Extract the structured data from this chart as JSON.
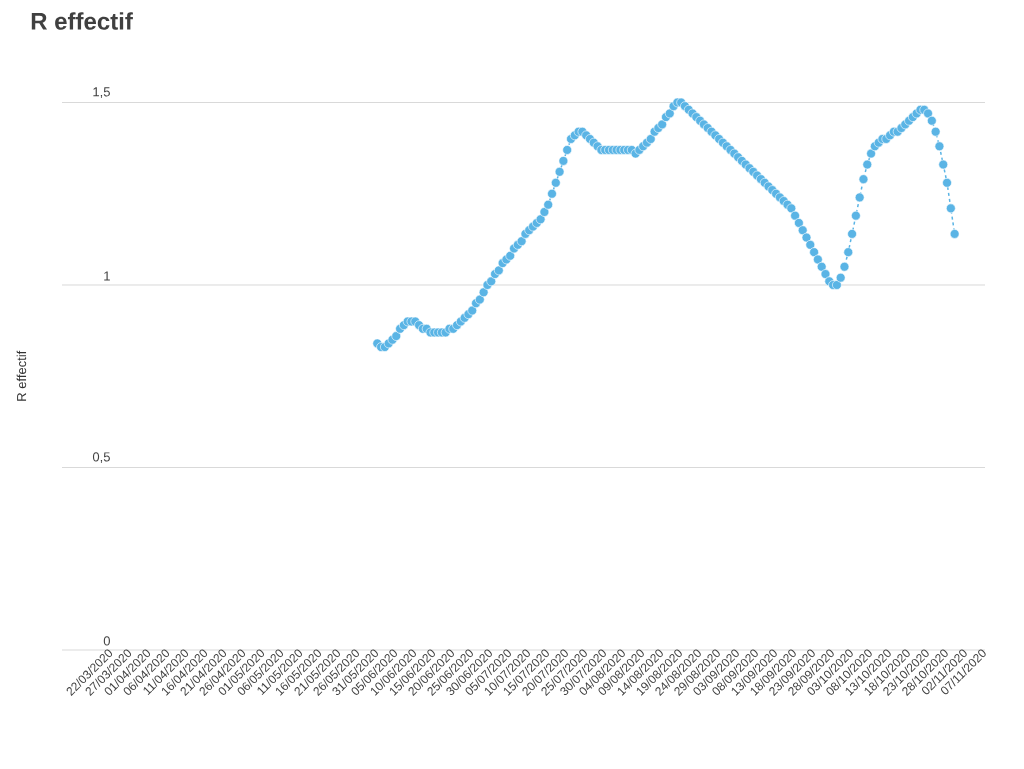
{
  "chart_data": {
    "type": "line",
    "title": "R effectif",
    "ylabel": "R effectif",
    "x": [
      "2020-05-31",
      "2020-06-01",
      "2020-06-02",
      "2020-06-03",
      "2020-06-04",
      "2020-06-05",
      "2020-06-06",
      "2020-06-07",
      "2020-06-08",
      "2020-06-09",
      "2020-06-10",
      "2020-06-11",
      "2020-06-12",
      "2020-06-13",
      "2020-06-14",
      "2020-06-15",
      "2020-06-16",
      "2020-06-17",
      "2020-06-18",
      "2020-06-19",
      "2020-06-20",
      "2020-06-21",
      "2020-06-22",
      "2020-06-23",
      "2020-06-24",
      "2020-06-25",
      "2020-06-26",
      "2020-06-27",
      "2020-06-28",
      "2020-06-29",
      "2020-06-30",
      "2020-07-01",
      "2020-07-02",
      "2020-07-03",
      "2020-07-04",
      "2020-07-05",
      "2020-07-06",
      "2020-07-07",
      "2020-07-08",
      "2020-07-09",
      "2020-07-10",
      "2020-07-11",
      "2020-07-12",
      "2020-07-13",
      "2020-07-14",
      "2020-07-15",
      "2020-07-16",
      "2020-07-17",
      "2020-07-18",
      "2020-07-19",
      "2020-07-20",
      "2020-07-21",
      "2020-07-22",
      "2020-07-23",
      "2020-07-24",
      "2020-07-25",
      "2020-07-26",
      "2020-07-27",
      "2020-07-28",
      "2020-07-29",
      "2020-07-30",
      "2020-07-31",
      "2020-08-01",
      "2020-08-02",
      "2020-08-03",
      "2020-08-04",
      "2020-08-05",
      "2020-08-06",
      "2020-08-07",
      "2020-08-08",
      "2020-08-09",
      "2020-08-10",
      "2020-08-11",
      "2020-08-12",
      "2020-08-13",
      "2020-08-14",
      "2020-08-15",
      "2020-08-16",
      "2020-08-17",
      "2020-08-18",
      "2020-08-19",
      "2020-08-20",
      "2020-08-21",
      "2020-08-22",
      "2020-08-23",
      "2020-08-24",
      "2020-08-25",
      "2020-08-26",
      "2020-08-27",
      "2020-08-28",
      "2020-08-29",
      "2020-08-30",
      "2020-08-31",
      "2020-09-01",
      "2020-09-02",
      "2020-09-03",
      "2020-09-04",
      "2020-09-05",
      "2020-09-06",
      "2020-09-07",
      "2020-09-08",
      "2020-09-09",
      "2020-09-10",
      "2020-09-11",
      "2020-09-12",
      "2020-09-13",
      "2020-09-14",
      "2020-09-15",
      "2020-09-16",
      "2020-09-17",
      "2020-09-18",
      "2020-09-19",
      "2020-09-20",
      "2020-09-21",
      "2020-09-22",
      "2020-09-23",
      "2020-09-24",
      "2020-09-25",
      "2020-09-26",
      "2020-09-27",
      "2020-09-28",
      "2020-09-29",
      "2020-09-30",
      "2020-10-01",
      "2020-10-02",
      "2020-10-03",
      "2020-10-04",
      "2020-10-05",
      "2020-10-06",
      "2020-10-07",
      "2020-10-08",
      "2020-10-09",
      "2020-10-10",
      "2020-10-11",
      "2020-10-12",
      "2020-10-13",
      "2020-10-14",
      "2020-10-15",
      "2020-10-16",
      "2020-10-17",
      "2020-10-18",
      "2020-10-19",
      "2020-10-20",
      "2020-10-21",
      "2020-10-22",
      "2020-10-23",
      "2020-10-24",
      "2020-10-25",
      "2020-10-26",
      "2020-10-27",
      "2020-10-28",
      "2020-10-29",
      "2020-10-30"
    ],
    "series": [
      {
        "color": "#5ab4e5",
        "values": [
          0.84,
          0.83,
          0.83,
          0.84,
          0.85,
          0.86,
          0.88,
          0.89,
          0.9,
          0.9,
          0.9,
          0.89,
          0.88,
          0.88,
          0.87,
          0.87,
          0.87,
          0.87,
          0.87,
          0.88,
          0.88,
          0.89,
          0.9,
          0.91,
          0.92,
          0.93,
          0.95,
          0.96,
          0.98,
          1.0,
          1.01,
          1.03,
          1.04,
          1.06,
          1.07,
          1.08,
          1.1,
          1.11,
          1.12,
          1.14,
          1.15,
          1.16,
          1.17,
          1.18,
          1.2,
          1.22,
          1.25,
          1.28,
          1.31,
          1.34,
          1.37,
          1.4,
          1.41,
          1.42,
          1.42,
          1.41,
          1.4,
          1.39,
          1.38,
          1.37,
          1.37,
          1.37,
          1.37,
          1.37,
          1.37,
          1.37,
          1.37,
          1.37,
          1.36,
          1.37,
          1.38,
          1.39,
          1.4,
          1.42,
          1.43,
          1.44,
          1.46,
          1.47,
          1.49,
          1.5,
          1.5,
          1.49,
          1.48,
          1.47,
          1.46,
          1.45,
          1.44,
          1.43,
          1.42,
          1.41,
          1.4,
          1.39,
          1.38,
          1.37,
          1.36,
          1.35,
          1.34,
          1.33,
          1.32,
          1.31,
          1.3,
          1.29,
          1.28,
          1.27,
          1.26,
          1.25,
          1.24,
          1.23,
          1.22,
          1.21,
          1.19,
          1.17,
          1.15,
          1.13,
          1.11,
          1.09,
          1.07,
          1.05,
          1.03,
          1.01,
          1.0,
          1.0,
          1.02,
          1.05,
          1.09,
          1.14,
          1.19,
          1.24,
          1.29,
          1.33,
          1.36,
          1.38,
          1.39,
          1.4,
          1.4,
          1.41,
          1.42,
          1.42,
          1.43,
          1.44,
          1.45,
          1.46,
          1.47,
          1.48,
          1.48,
          1.47,
          1.45,
          1.42,
          1.38,
          1.33,
          1.28,
          1.21,
          1.14
        ]
      }
    ],
    "marker": "circle",
    "line_style": "dashed",
    "grid": "y",
    "xlim": [
      "2020-03-09",
      "2020-11-07"
    ],
    "xticks": [
      {
        "value": "2020-03-22",
        "label": "22/03/2020"
      },
      {
        "value": "2020-03-27",
        "label": "27/03/2020"
      },
      {
        "value": "2020-04-01",
        "label": "01/04/2020"
      },
      {
        "value": "2020-04-06",
        "label": "06/04/2020"
      },
      {
        "value": "2020-04-11",
        "label": "11/04/2020"
      },
      {
        "value": "2020-04-16",
        "label": "16/04/2020"
      },
      {
        "value": "2020-04-21",
        "label": "21/04/2020"
      },
      {
        "value": "2020-04-26",
        "label": "26/04/2020"
      },
      {
        "value": "2020-05-01",
        "label": "01/05/2020"
      },
      {
        "value": "2020-05-06",
        "label": "06/05/2020"
      },
      {
        "value": "2020-05-11",
        "label": "11/05/2020"
      },
      {
        "value": "2020-05-16",
        "label": "16/05/2020"
      },
      {
        "value": "2020-05-21",
        "label": "21/05/2020"
      },
      {
        "value": "2020-05-26",
        "label": "26/05/2020"
      },
      {
        "value": "2020-05-31",
        "label": "31/05/2020"
      },
      {
        "value": "2020-06-05",
        "label": "05/06/2020"
      },
      {
        "value": "2020-06-10",
        "label": "10/06/2020"
      },
      {
        "value": "2020-06-15",
        "label": "15/06/2020"
      },
      {
        "value": "2020-06-20",
        "label": "20/06/2020"
      },
      {
        "value": "2020-06-25",
        "label": "25/06/2020"
      },
      {
        "value": "2020-06-30",
        "label": "30/06/2020"
      },
      {
        "value": "2020-07-05",
        "label": "05/07/2020"
      },
      {
        "value": "2020-07-10",
        "label": "10/07/2020"
      },
      {
        "value": "2020-07-15",
        "label": "15/07/2020"
      },
      {
        "value": "2020-07-20",
        "label": "20/07/2020"
      },
      {
        "value": "2020-07-25",
        "label": "25/07/2020"
      },
      {
        "value": "2020-07-30",
        "label": "30/07/2020"
      },
      {
        "value": "2020-08-04",
        "label": "04/08/2020"
      },
      {
        "value": "2020-08-09",
        "label": "09/08/2020"
      },
      {
        "value": "2020-08-14",
        "label": "14/08/2020"
      },
      {
        "value": "2020-08-19",
        "label": "19/08/2020"
      },
      {
        "value": "2020-08-24",
        "label": "24/08/2020"
      },
      {
        "value": "2020-08-29",
        "label": "29/08/2020"
      },
      {
        "value": "2020-09-03",
        "label": "03/09/2020"
      },
      {
        "value": "2020-09-08",
        "label": "08/09/2020"
      },
      {
        "value": "2020-09-13",
        "label": "13/09/2020"
      },
      {
        "value": "2020-09-18",
        "label": "18/09/2020"
      },
      {
        "value": "2020-09-23",
        "label": "23/09/2020"
      },
      {
        "value": "2020-09-28",
        "label": "28/09/2020"
      },
      {
        "value": "2020-10-03",
        "label": "03/10/2020"
      },
      {
        "value": "2020-10-08",
        "label": "08/10/2020"
      },
      {
        "value": "2020-10-13",
        "label": "13/10/2020"
      },
      {
        "value": "2020-10-18",
        "label": "18/10/2020"
      },
      {
        "value": "2020-10-23",
        "label": "23/10/2020"
      },
      {
        "value": "2020-10-28",
        "label": "28/10/2020"
      },
      {
        "value": "2020-11-02",
        "label": "02/11/2020"
      },
      {
        "value": "2020-11-07",
        "label": "07/11/2020"
      }
    ],
    "ylim": [
      0,
      1.5
    ],
    "yticks": [
      {
        "value": 0,
        "label": "0"
      },
      {
        "value": 0.5,
        "label": "0,5"
      },
      {
        "value": 1,
        "label": "1"
      },
      {
        "value": 1.5,
        "label": "1,5"
      }
    ]
  }
}
